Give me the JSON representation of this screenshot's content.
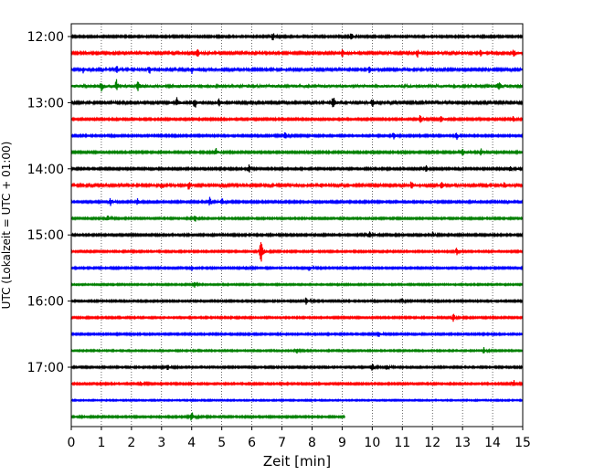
{
  "chart_data": {
    "type": "line",
    "title": "",
    "xlabel": "Zeit  [min]",
    "ylabel": "UTC (Lokalzeit = UTC + 01:00)",
    "xlim": [
      0,
      15
    ],
    "x_ticks": [
      0,
      1,
      2,
      3,
      4,
      5,
      6,
      7,
      8,
      9,
      10,
      11,
      12,
      13,
      14,
      15
    ],
    "y_tick_labels": [
      "12:00",
      "13:00",
      "14:00",
      "15:00",
      "16:00",
      "17:00"
    ],
    "row_interval_minutes": 15,
    "x_grid": true,
    "colors": [
      "#000000",
      "#ff0000",
      "#0000ff",
      "#008000"
    ],
    "rows": [
      {
        "time": "12:00",
        "color": "#000000",
        "amp": 1.0,
        "end": 15,
        "events": [
          [
            6.7,
            3.5
          ],
          [
            9.3,
            3.0
          ]
        ]
      },
      {
        "time": "12:15",
        "color": "#ff0000",
        "amp": 1.2,
        "end": 15,
        "events": [
          [
            4.2,
            4.0
          ],
          [
            9.0,
            3.0
          ],
          [
            11.5,
            3.0
          ],
          [
            13.6,
            3.0
          ],
          [
            14.7,
            3.0
          ]
        ]
      },
      {
        "time": "12:30",
        "color": "#0000ff",
        "amp": 1.2,
        "end": 15,
        "events": [
          [
            0.4,
            3.0
          ],
          [
            1.5,
            3.5
          ],
          [
            2.6,
            3.0
          ],
          [
            4.0,
            3.0
          ],
          [
            9.9,
            2.5
          ]
        ]
      },
      {
        "time": "12:45",
        "color": "#008000",
        "amp": 1.6,
        "end": 15,
        "events": [
          [
            1.0,
            4.0
          ],
          [
            1.5,
            5.0
          ],
          [
            2.2,
            4.0
          ],
          [
            14.2,
            4.0
          ]
        ]
      },
      {
        "time": "13:00",
        "color": "#000000",
        "amp": 1.2,
        "end": 15,
        "events": [
          [
            3.5,
            4.0
          ],
          [
            4.1,
            5.0
          ],
          [
            4.9,
            4.0
          ],
          [
            8.7,
            6.0
          ],
          [
            10.0,
            4.0
          ]
        ]
      },
      {
        "time": "13:15",
        "color": "#ff0000",
        "amp": 1.0,
        "end": 15,
        "events": [
          [
            11.6,
            4.0
          ],
          [
            12.3,
            4.0
          ],
          [
            14.7,
            3.0
          ]
        ]
      },
      {
        "time": "13:30",
        "color": "#0000ff",
        "amp": 1.0,
        "end": 15,
        "events": [
          [
            7.1,
            3.0
          ],
          [
            10.7,
            3.0
          ],
          [
            12.8,
            3.0
          ]
        ]
      },
      {
        "time": "13:45",
        "color": "#008000",
        "amp": 1.0,
        "end": 15,
        "events": [
          [
            4.8,
            3.5
          ],
          [
            13.0,
            4.0
          ],
          [
            13.6,
            3.0
          ]
        ]
      },
      {
        "time": "14:00",
        "color": "#000000",
        "amp": 1.0,
        "end": 15,
        "events": [
          [
            5.9,
            3.5
          ],
          [
            11.8,
            3.0
          ],
          [
            14.6,
            2.5
          ]
        ]
      },
      {
        "time": "14:15",
        "color": "#ff0000",
        "amp": 1.2,
        "end": 15,
        "events": [
          [
            3.0,
            3.0
          ],
          [
            3.9,
            3.5
          ],
          [
            8.3,
            3.0
          ],
          [
            11.3,
            3.5
          ],
          [
            12.3,
            3.0
          ],
          [
            14.4,
            3.0
          ]
        ]
      },
      {
        "time": "14:30",
        "color": "#0000ff",
        "amp": 1.0,
        "end": 15,
        "events": [
          [
            1.3,
            3.0
          ],
          [
            2.2,
            2.5
          ],
          [
            4.6,
            3.5
          ],
          [
            5.0,
            3.0
          ]
        ]
      },
      {
        "time": "14:45",
        "color": "#008000",
        "amp": 0.9,
        "end": 15,
        "events": [
          [
            1.2,
            3.0
          ],
          [
            4.1,
            3.5
          ]
        ]
      },
      {
        "time": "15:00",
        "color": "#000000",
        "amp": 1.0,
        "end": 15,
        "events": [
          [
            9.9,
            3.0
          ],
          [
            12.0,
            2.5
          ]
        ]
      },
      {
        "time": "15:15",
        "color": "#ff0000",
        "amp": 0.9,
        "end": 15,
        "events": [
          [
            6.3,
            12.0
          ],
          [
            12.8,
            3.0
          ]
        ]
      },
      {
        "time": "15:30",
        "color": "#0000ff",
        "amp": 0.9,
        "end": 15,
        "events": [
          [
            4.0,
            2.5
          ],
          [
            5.8,
            2.5
          ],
          [
            7.9,
            2.5
          ]
        ]
      },
      {
        "time": "15:45",
        "color": "#008000",
        "amp": 0.8,
        "end": 15,
        "events": [
          [
            4.1,
            3.0
          ]
        ]
      },
      {
        "time": "16:00",
        "color": "#000000",
        "amp": 0.9,
        "end": 15,
        "events": [
          [
            7.8,
            3.0
          ],
          [
            11.0,
            2.5
          ]
        ]
      },
      {
        "time": "16:15",
        "color": "#ff0000",
        "amp": 0.9,
        "end": 15,
        "events": [
          [
            12.7,
            3.5
          ]
        ]
      },
      {
        "time": "16:30",
        "color": "#0000ff",
        "amp": 0.9,
        "end": 15,
        "events": [
          [
            10.2,
            3.0
          ]
        ]
      },
      {
        "time": "16:45",
        "color": "#008000",
        "amp": 0.8,
        "end": 15,
        "events": [
          [
            7.5,
            2.5
          ],
          [
            13.7,
            2.5
          ]
        ]
      },
      {
        "time": "17:00",
        "color": "#000000",
        "amp": 0.9,
        "end": 15,
        "events": [
          [
            10.0,
            3.0
          ],
          [
            10.5,
            2.5
          ],
          [
            3.2,
            2.5
          ]
        ]
      },
      {
        "time": "17:15",
        "color": "#ff0000",
        "amp": 0.9,
        "end": 15,
        "events": [
          [
            2.3,
            2.5
          ],
          [
            14.7,
            3.5
          ]
        ]
      },
      {
        "time": "17:30",
        "color": "#0000ff",
        "amp": 0.7,
        "end": 15,
        "events": []
      },
      {
        "time": "17:45",
        "color": "#008000",
        "amp": 0.9,
        "end": 9.1,
        "events": [
          [
            4.0,
            4.0
          ]
        ]
      }
    ]
  }
}
